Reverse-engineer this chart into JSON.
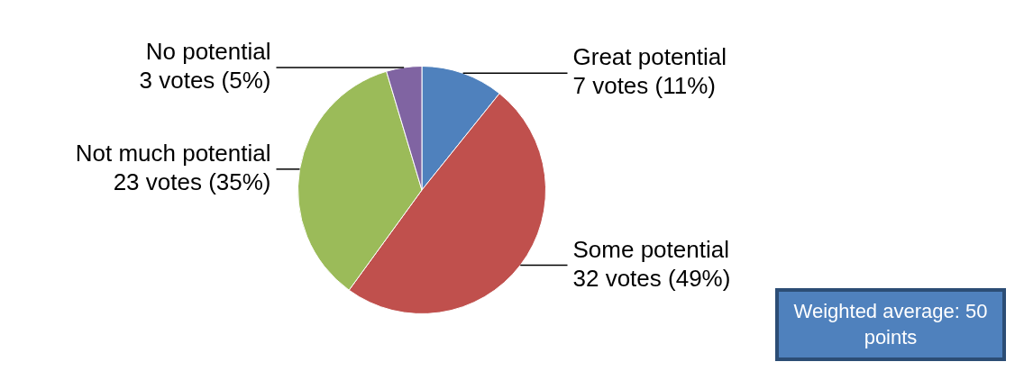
{
  "chart_data": {
    "type": "pie",
    "categories": [
      "Great potential",
      "Some potential",
      "Not much potential",
      "No potential"
    ],
    "values": [
      7,
      32,
      23,
      3
    ],
    "colors": [
      "#4f81bd",
      "#c0504d",
      "#9bbb59",
      "#8064a2"
    ],
    "value_labels": [
      "7 votes (11%)",
      "32 votes (49%)",
      "23 votes (35%)",
      "3 votes (5%)"
    ],
    "annotations": [
      "Weighted average: 50 points"
    ],
    "legend": false
  }
}
